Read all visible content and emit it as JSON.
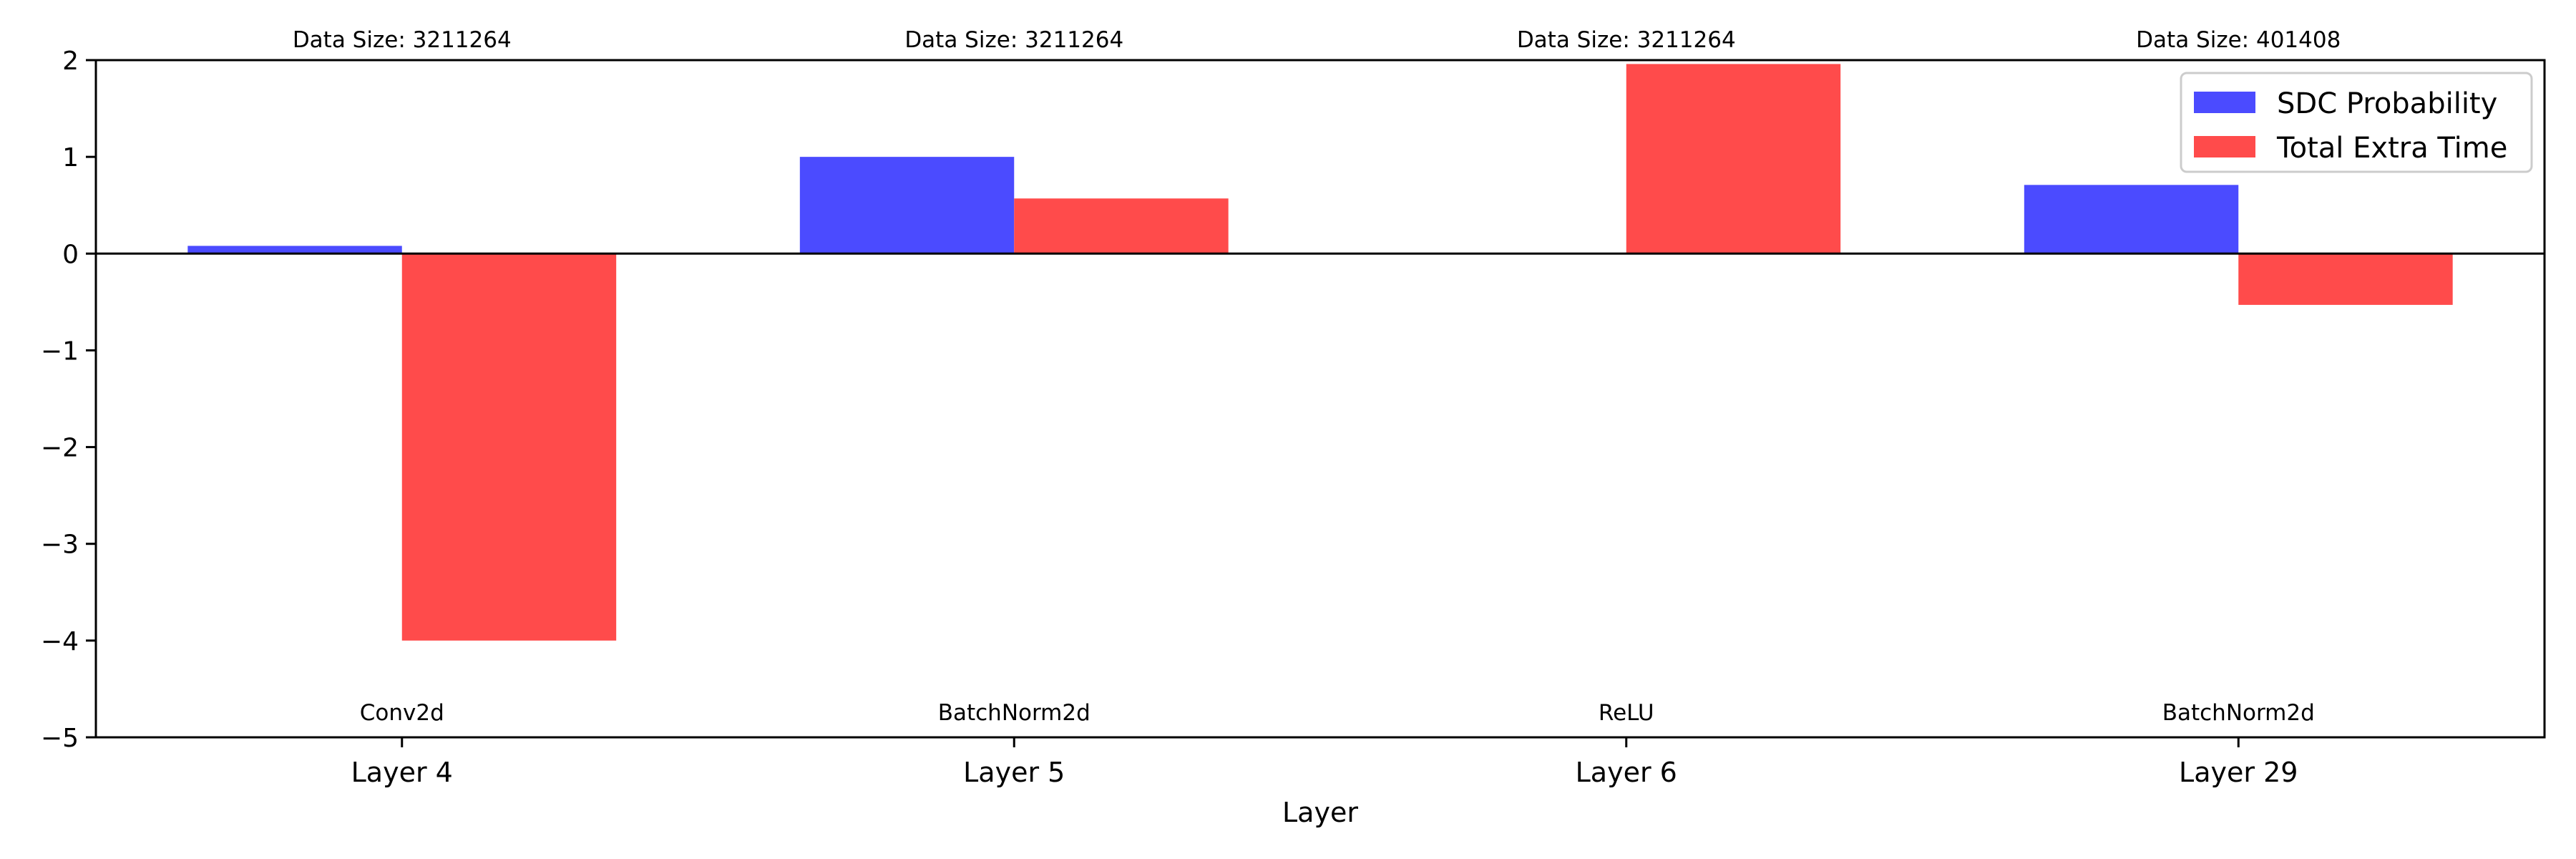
{
  "chart_data": {
    "type": "bar",
    "categories": [
      "Layer 4",
      "Layer 5",
      "Layer 6",
      "Layer 29"
    ],
    "series": [
      {
        "name": "SDC Probability",
        "color": "#4b4bff",
        "values": [
          0.08,
          1.0,
          0.0,
          0.71
        ]
      },
      {
        "name": "Total Extra Time",
        "color": "#ff4b4b",
        "values": [
          -4.0,
          0.57,
          1.96,
          -0.53
        ]
      }
    ],
    "top_annotations": [
      "Data Size: 3211264",
      "Data Size: 3211264",
      "Data Size: 3211264",
      "Data Size: 401408"
    ],
    "bottom_annotations": [
      "Conv2d",
      "BatchNorm2d",
      "ReLU",
      "BatchNorm2d"
    ],
    "xlabel": "Layer",
    "ylabel": "",
    "ylim": [
      -5,
      2
    ],
    "yticks": [
      2,
      1,
      0,
      -1,
      -2,
      -3,
      -4,
      -5
    ],
    "ytick_labels": [
      "2",
      "1",
      "0",
      "−1",
      "−2",
      "−3",
      "−4",
      "−5"
    ],
    "grid": false,
    "legend_position": "top-right"
  }
}
